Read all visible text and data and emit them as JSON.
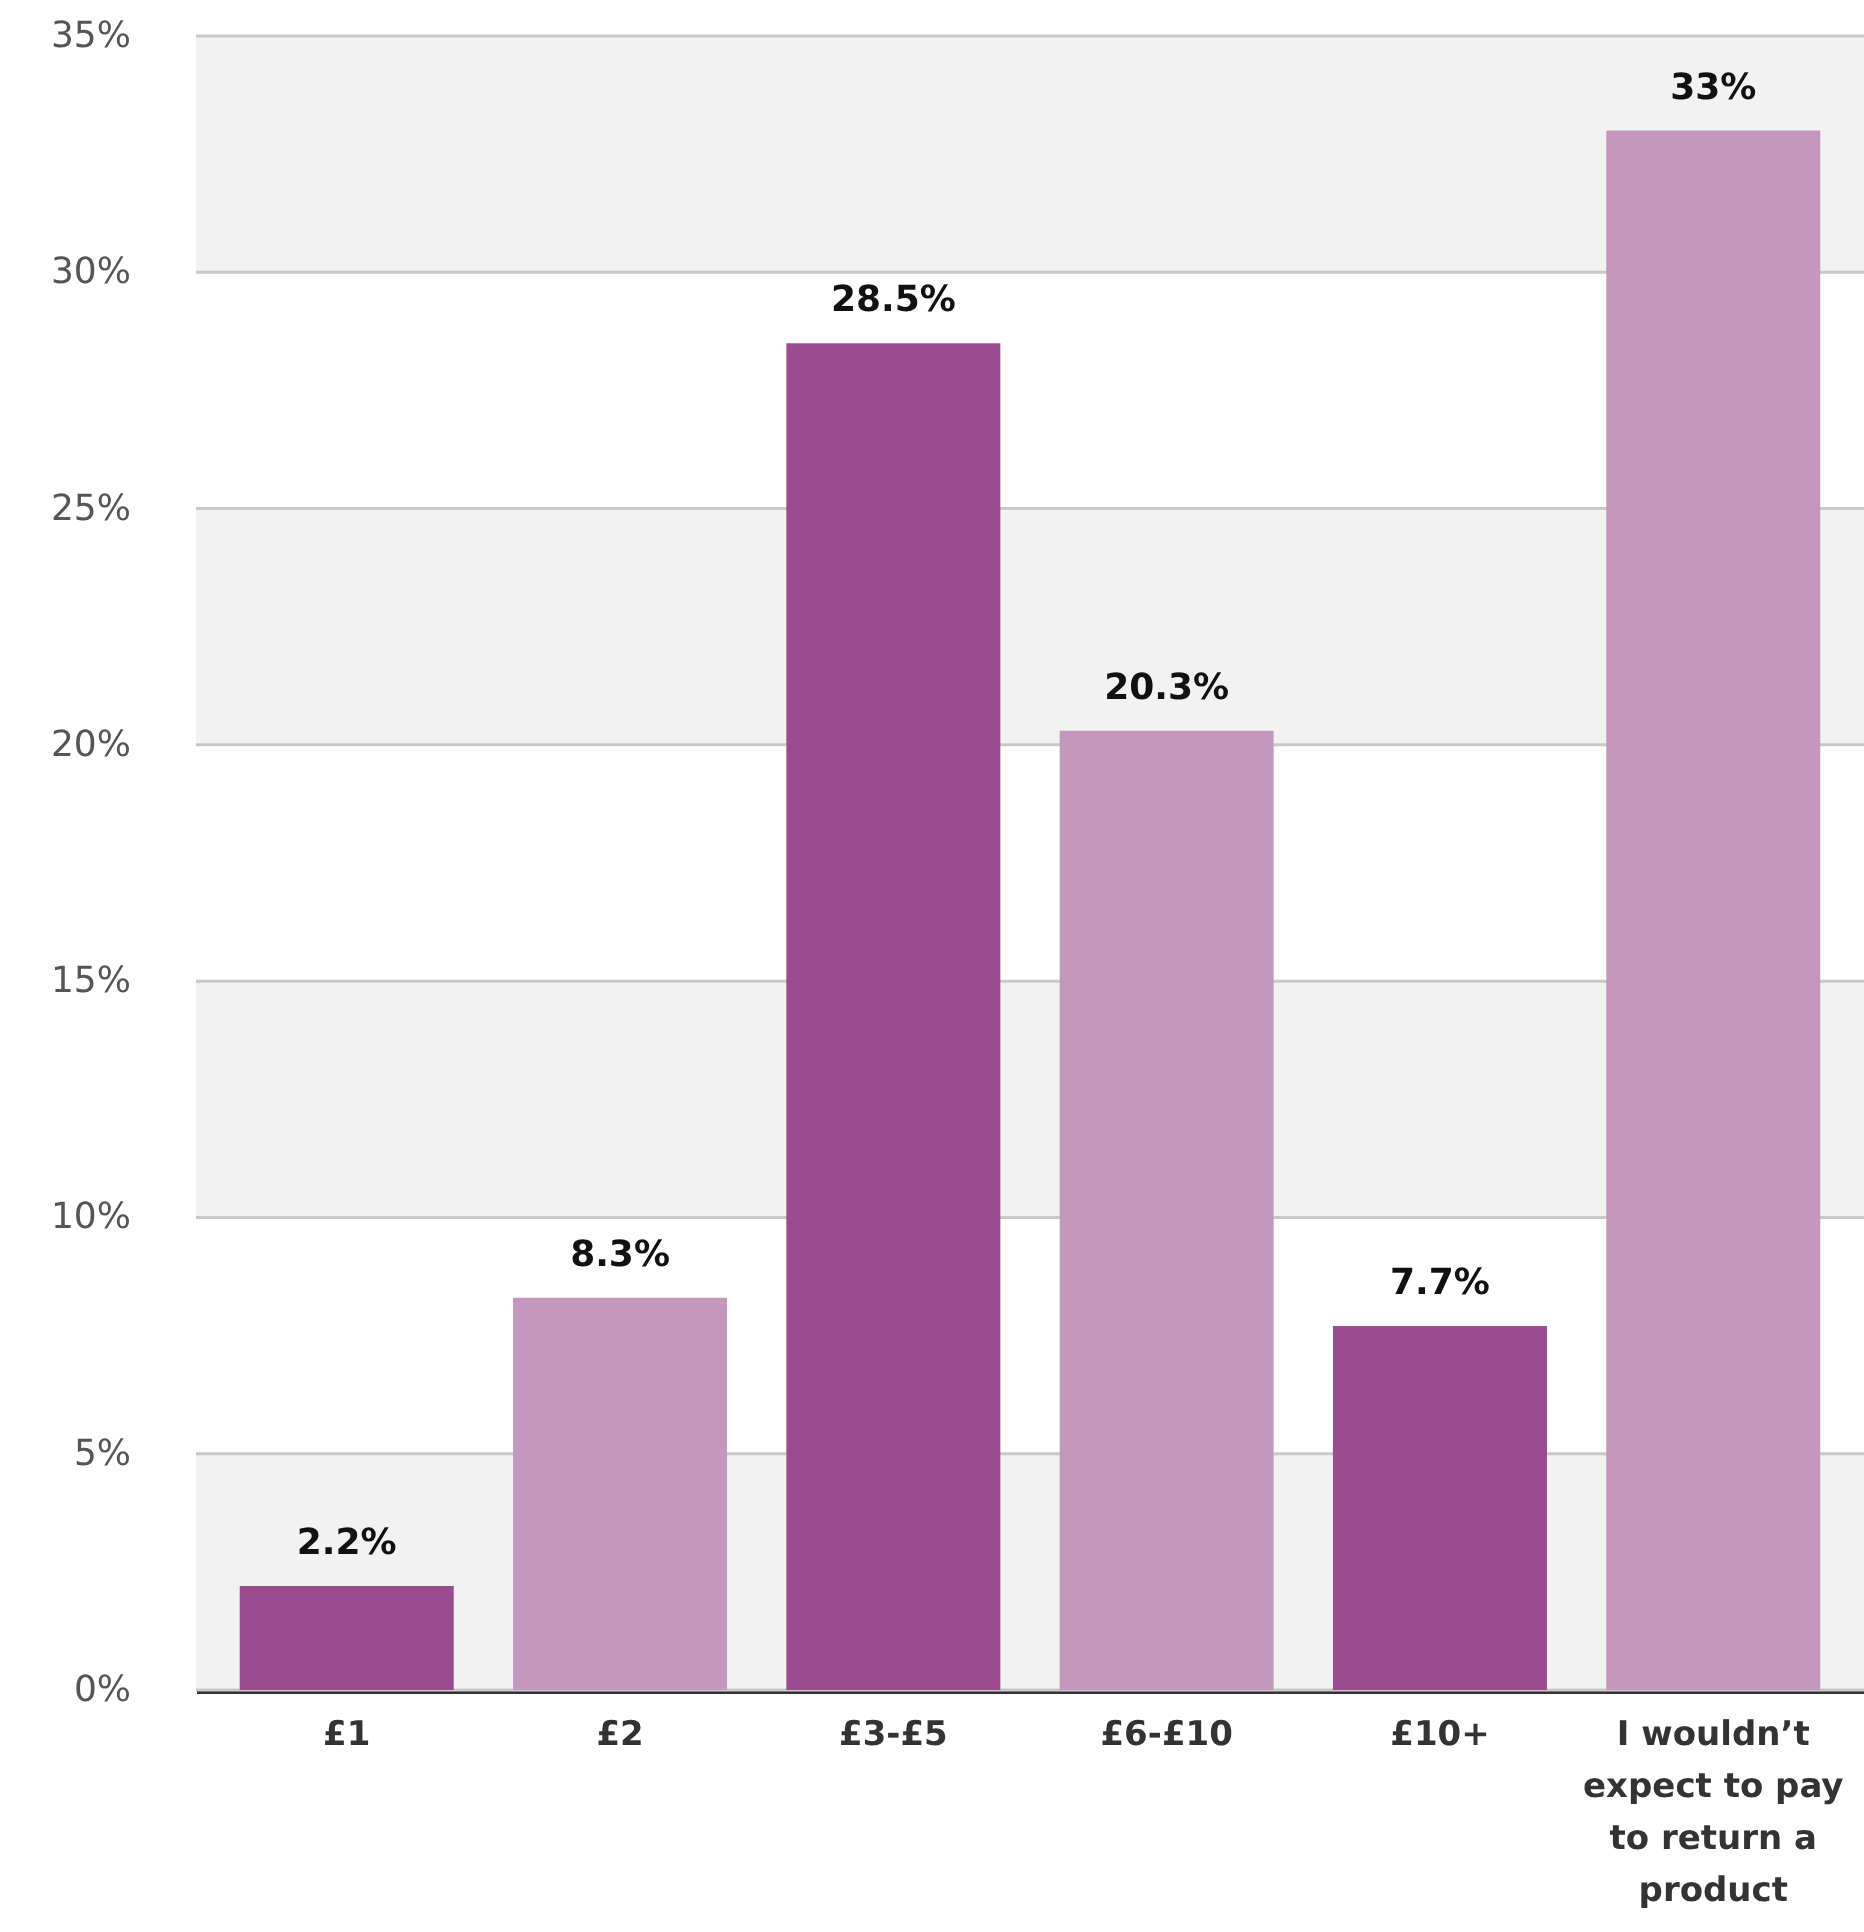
{
  "chart_data": {
    "type": "bar",
    "categories": [
      "£1",
      "£2",
      "£3-£5",
      "£6-£10",
      "£10+",
      "I wouldn’t expect to pay to return a product"
    ],
    "values": [
      2.2,
      8.3,
      28.5,
      20.3,
      7.7,
      33
    ],
    "colors": [
      "#9a4c8e",
      "#c497bf",
      "#9a4c8e",
      "#c497bf",
      "#9a4c8e",
      "#c497bf"
    ],
    "value_labels": [
      "2.2%",
      "8.3%",
      "28.5%",
      "20.3%",
      "7.7%",
      "33%"
    ],
    "ylim": [
      0,
      35
    ],
    "yticks": [
      {
        "value": 0,
        "label": "0%"
      },
      {
        "value": 5,
        "label": "5%"
      },
      {
        "value": 10,
        "label": "10%"
      },
      {
        "value": 15,
        "label": "15%"
      },
      {
        "value": 20,
        "label": "20%"
      },
      {
        "value": 25,
        "label": "25%"
      },
      {
        "value": 30,
        "label": "30%"
      },
      {
        "value": 35,
        "label": "35%"
      }
    ],
    "grid": "y",
    "bands": [
      {
        "axis": "y",
        "from": 0,
        "to": 5,
        "color": "#f2f2f2"
      },
      {
        "axis": "y",
        "from": 10,
        "to": 15,
        "color": "#f2f2f2"
      },
      {
        "axis": "y",
        "from": 20,
        "to": 25,
        "color": "#f2f2f2"
      },
      {
        "axis": "y",
        "from": 30,
        "to": 35,
        "color": "#f2f2f2"
      }
    ]
  }
}
